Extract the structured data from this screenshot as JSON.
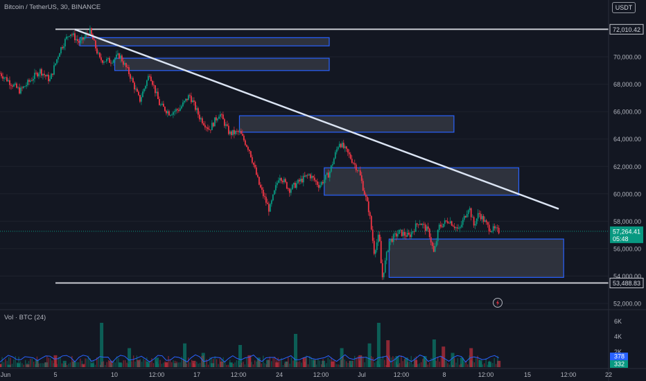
{
  "header": {
    "symbol_title": "Bitcoin / TetherUS, 30, BINANCE",
    "currency": "USDT"
  },
  "volume": {
    "title": "Vol · BTC (24)",
    "axis_ticks": [
      "6K",
      "4K",
      "2K"
    ],
    "badge_values": [
      "378",
      "332"
    ],
    "badge_colors": [
      "#2962ff",
      "#089981"
    ]
  },
  "chart_data": {
    "type": "candlestick",
    "title": "Bitcoin / TetherUS, 30, BINANCE",
    "ylim": [
      51000,
      74000
    ],
    "y_ticks": [
      52000,
      54000,
      56000,
      58000,
      60000,
      62000,
      64000,
      66000,
      68000,
      70000
    ],
    "y_tick_labels": [
      "52,000.00",
      "54,000.00",
      "56,000.00",
      "58,000.00",
      "60,000.00",
      "62,000.00",
      "64,000.00",
      "66,000.00",
      "68,000.00",
      "70,000.00"
    ],
    "x_tick_labels": [
      "Jun",
      "5",
      "10",
      "12:00",
      "17",
      "12:00",
      "24",
      "12:00",
      "Jul",
      "12:00",
      "8",
      "12:00",
      "15",
      "12:00",
      "22"
    ],
    "price_path": [
      [
        0,
        68800
      ],
      [
        2,
        67500
      ],
      [
        4,
        69000
      ],
      [
        5,
        68300
      ],
      [
        6,
        70500
      ],
      [
        7,
        71800
      ],
      [
        8,
        71000
      ],
      [
        9,
        71900
      ],
      [
        10,
        69800
      ],
      [
        11,
        69700
      ],
      [
        12,
        70100
      ],
      [
        13,
        68700
      ],
      [
        14,
        66800
      ],
      [
        15,
        68800
      ],
      [
        16,
        66500
      ],
      [
        17,
        65900
      ],
      [
        18,
        66200
      ],
      [
        19,
        67200
      ],
      [
        20,
        65600
      ],
      [
        21,
        64700
      ],
      [
        22,
        65900
      ],
      [
        23,
        64400
      ],
      [
        24,
        64500
      ],
      [
        25,
        63200
      ],
      [
        26,
        60600
      ],
      [
        27,
        58800
      ],
      [
        28,
        61400
      ],
      [
        29,
        60300
      ],
      [
        30,
        60900
      ],
      [
        31,
        61400
      ],
      [
        32,
        60600
      ],
      [
        33,
        61500
      ],
      [
        34,
        63800
      ],
      [
        35,
        62800
      ],
      [
        36,
        61600
      ],
      [
        37,
        58700
      ],
      [
        37.5,
        55800
      ],
      [
        38,
        57000
      ],
      [
        38.3,
        53800
      ],
      [
        39,
        56500
      ],
      [
        40,
        57200
      ],
      [
        41,
        56900
      ],
      [
        42,
        58000
      ],
      [
        43,
        57200
      ],
      [
        43.5,
        55600
      ],
      [
        44,
        57600
      ],
      [
        45,
        58100
      ],
      [
        46,
        57300
      ],
      [
        47,
        59100
      ],
      [
        47.5,
        57700
      ],
      [
        48,
        58600
      ],
      [
        49,
        57500
      ],
      [
        50,
        57264.41
      ]
    ],
    "trendline": {
      "start": [
        7.5,
        72000
      ],
      "end": [
        56,
        58900
      ]
    },
    "horizontal_levels": [
      {
        "price": 72010.42,
        "label": "72,010.42"
      },
      {
        "price": 53488.83,
        "label": "53,488.83"
      }
    ],
    "current_price": {
      "price": 57264.41,
      "label": "57,264.41",
      "countdown": "05:48",
      "color": "#089981"
    },
    "zones": [
      {
        "x": [
          8,
          33
        ],
        "y": [
          70800,
          71400
        ]
      },
      {
        "x": [
          11.5,
          33
        ],
        "y": [
          69000,
          69900
        ]
      },
      {
        "x": [
          24,
          45.5
        ],
        "y": [
          64500,
          65700
        ]
      },
      {
        "x": [
          32.5,
          52
        ],
        "y": [
          59900,
          61900
        ]
      },
      {
        "x": [
          39,
          56.5
        ],
        "y": [
          53900,
          56700
        ]
      }
    ],
    "volume_series": {
      "name": "Vol · BTC (24)",
      "values": [
        400,
        300,
        500,
        350,
        900,
        600,
        1500,
        800,
        700,
        400,
        500,
        5600,
        800,
        600,
        2400,
        900,
        700,
        1200,
        600,
        500,
        3000,
        800,
        1800,
        500,
        700,
        600,
        2800,
        1500,
        1200,
        900,
        600,
        700,
        4200,
        1200,
        900,
        800,
        700,
        2400,
        800,
        1500,
        3000,
        5600,
        3400,
        1400,
        1200,
        900,
        1400,
        3500,
        2600,
        1800,
        1200,
        2400,
        900,
        700,
        800
      ],
      "max": 7000
    }
  }
}
